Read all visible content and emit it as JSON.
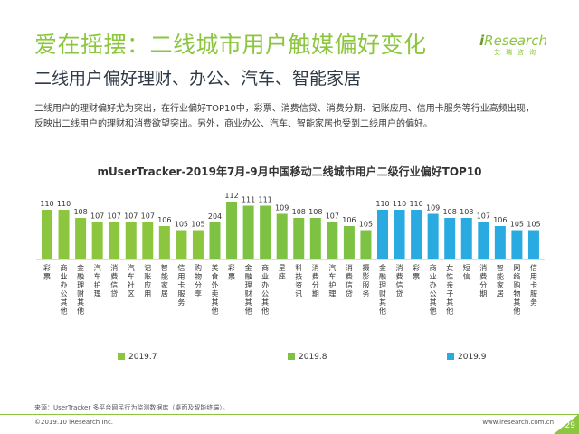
{
  "header": {
    "title": "爱在摇摆：二线城市用户触媒偏好变化",
    "subtitle": "二线用户偏好理财、办公、汽车、智能家居",
    "description": "二线用户的理财偏好尤为突出，在行业偏好TOP10中，彩票、消费信贷、消费分期、记账应用、信用卡服务等行业高频出现，反映出二线用户的理财和消费欲望突出。另外，商业办公、汽车、智能家居也受到二线用户的偏好。"
  },
  "logo": {
    "prefix": "i",
    "name": "Research",
    "sub": "艾瑞咨询"
  },
  "colors": {
    "green": "#8cc63f",
    "lime": "#7dc242",
    "blue": "#29abe2",
    "axis": "#999999"
  },
  "chart_data": {
    "type": "bar",
    "title": "mUserTracker-2019年7月-9月中国移动二线城市用户二级行业偏好TOP10",
    "legend_position": "bottom",
    "series": [
      {
        "name": "2019.7",
        "color": "#8cc63f",
        "categories": [
          "彩票",
          "商业办公其他",
          "金融理财其他",
          "汽车护理",
          "消费信贷",
          "汽车社区",
          "记账应用",
          "智能家居",
          "信用卡服务",
          "购物分享"
        ],
        "values": [
          110,
          110,
          108,
          107,
          107,
          107,
          107,
          106,
          105,
          105
        ]
      },
      {
        "name": "2019.8",
        "color": "#7dc242",
        "categories": [
          "美食外卖其他",
          "彩票",
          "金融理财其他",
          "商业办公其他",
          "星座",
          "科技资讯",
          "消费分期",
          "汽车护理",
          "消费信贷",
          "摄影服务"
        ],
        "values": [
          204,
          112,
          111,
          111,
          109,
          108,
          108,
          107,
          106,
          105
        ]
      },
      {
        "name": "2019.9",
        "color": "#29abe2",
        "categories": [
          "金融理财其他",
          "消费信贷",
          "彩票",
          "商业办公其他",
          "女性亲子其他",
          "短信",
          "消费分期",
          "智能家居",
          "网络购物其他",
          "信用卡服务"
        ],
        "values": [
          110,
          110,
          110,
          109,
          108,
          108,
          107,
          106,
          105,
          105
        ]
      }
    ]
  },
  "footer": {
    "source": "来源：UserTracker 多平台网民行为监测数据库（桌面及智能终端）。",
    "copyright": "©2019.10 iResearch Inc.",
    "website": "www.iresearch.com.cn",
    "page": "29"
  }
}
